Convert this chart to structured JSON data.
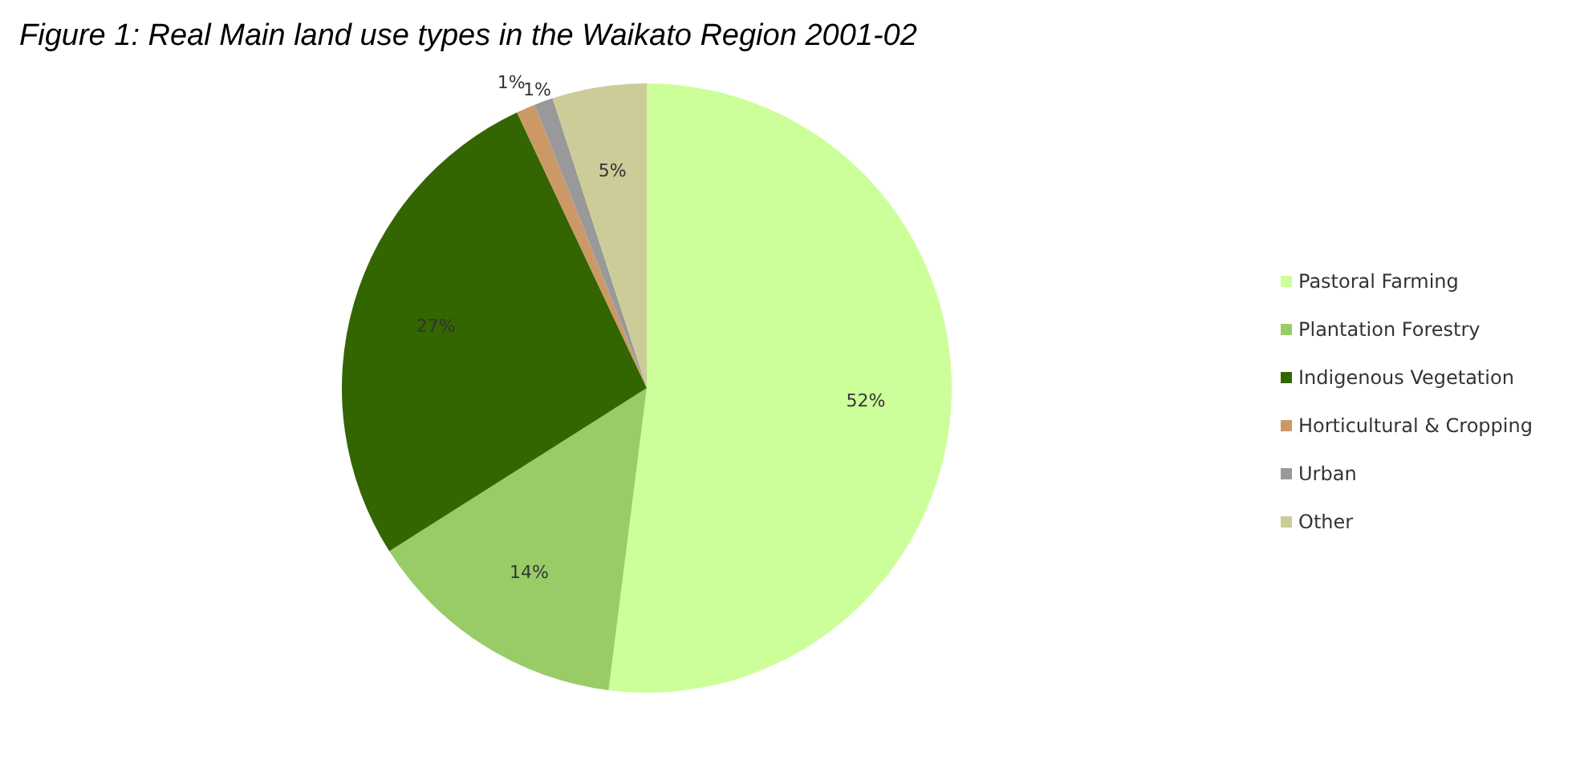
{
  "chart_data": {
    "type": "pie",
    "title": "Figure 1: Real Main land use types in the Waikato Region 2001-02",
    "categories": [
      "Pastoral Farming",
      "Plantation Forestry",
      "Indigenous Vegetation",
      "Horticultural & Cropping",
      "Urban",
      "Other"
    ],
    "values": [
      52,
      14,
      27,
      1,
      1,
      5
    ],
    "value_labels": [
      "52%",
      "14%",
      "27%",
      "1%",
      "1%",
      "5%"
    ],
    "colors": [
      "#ccff99",
      "#99cc66",
      "#336600",
      "#cc9966",
      "#999999",
      "#cccc99"
    ],
    "legend": "right"
  }
}
